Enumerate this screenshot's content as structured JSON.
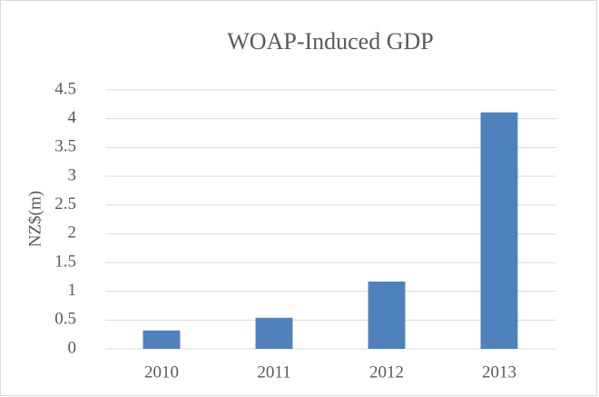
{
  "chart_data": {
    "type": "bar",
    "title": "WOAP-Induced GDP",
    "y_label": "NZ$(m)",
    "categories": [
      "2010",
      "2011",
      "2012",
      "2013"
    ],
    "values": [
      0.32,
      0.54,
      1.17,
      4.11
    ],
    "color": "#4f81bd",
    "ylim": [
      0,
      4.5
    ],
    "yticks": [
      0,
      0.5,
      1,
      1.5,
      2,
      2.5,
      3,
      3.5,
      4,
      4.5
    ],
    "grid": true
  }
}
